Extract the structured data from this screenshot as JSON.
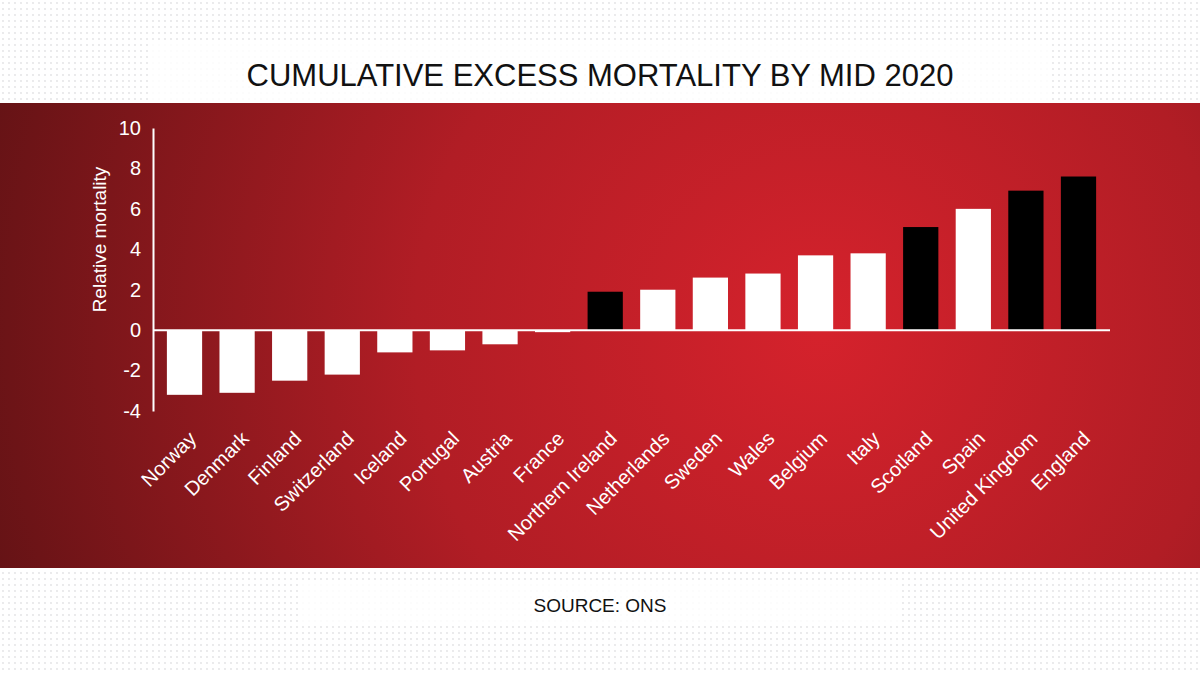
{
  "chart_data": {
    "type": "bar",
    "title": "CUMULATIVE EXCESS MORTALITY BY MID 2020",
    "y_label": "Relative mortality",
    "source": "SOURCE: ONS",
    "categories": [
      "Norway",
      "Denmark",
      "Finland",
      "Switzerland",
      "Iceland",
      "Portugal",
      "Austria",
      "France",
      "Northern Ireland",
      "Netherlands",
      "Sweden",
      "Wales",
      "Belgium",
      "Italy",
      "Scotland",
      "Spain",
      "United Kingdom",
      "England"
    ],
    "values": [
      -3.2,
      -3.1,
      -2.5,
      -2.2,
      -1.1,
      -1.0,
      -0.7,
      -0.1,
      1.9,
      2.0,
      2.6,
      2.8,
      3.7,
      3.8,
      5.1,
      6.0,
      6.9,
      7.6
    ],
    "colors": [
      "#ffffff",
      "#ffffff",
      "#ffffff",
      "#ffffff",
      "#ffffff",
      "#ffffff",
      "#ffffff",
      "#ffffff",
      "#000000",
      "#ffffff",
      "#ffffff",
      "#ffffff",
      "#ffffff",
      "#ffffff",
      "#000000",
      "#ffffff",
      "#000000",
      "#000000"
    ],
    "ylim": [
      -4,
      10
    ],
    "yticks": [
      -4,
      -2,
      0,
      2,
      4,
      6,
      8,
      10
    ],
    "grid": false
  }
}
